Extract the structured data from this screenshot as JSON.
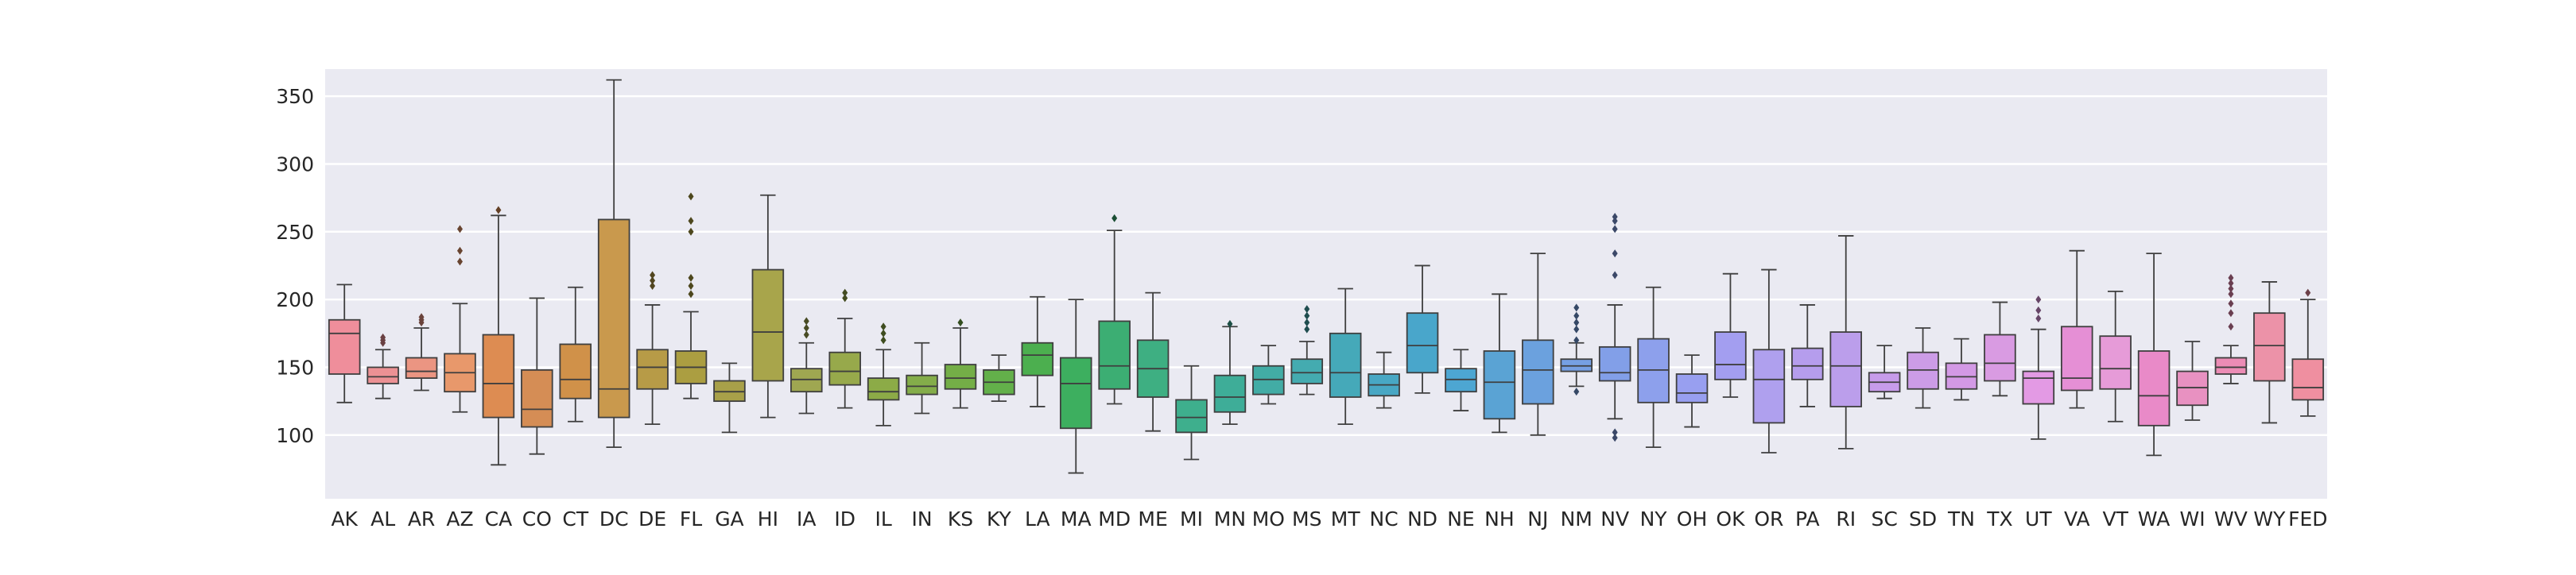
{
  "chart_data": {
    "type": "boxplot",
    "title": "",
    "xlabel": "",
    "ylabel": "",
    "ylim": [
      53,
      370
    ],
    "yticks": [
      100,
      150,
      200,
      250,
      300,
      350
    ],
    "grid": true,
    "legend": "none",
    "background_color": "#eaeaf2",
    "categories": [
      "AK",
      "AL",
      "AR",
      "AZ",
      "CA",
      "CO",
      "CT",
      "DC",
      "DE",
      "FL",
      "GA",
      "HI",
      "IA",
      "ID",
      "IL",
      "IN",
      "KS",
      "KY",
      "LA",
      "MA",
      "MD",
      "ME",
      "MI",
      "MN",
      "MO",
      "MS",
      "MT",
      "NC",
      "ND",
      "NE",
      "NH",
      "NJ",
      "NM",
      "NV",
      "NY",
      "OH",
      "OK",
      "OR",
      "PA",
      "RI",
      "SC",
      "SD",
      "TN",
      "TX",
      "UT",
      "VA",
      "VT",
      "WA",
      "WI",
      "WV",
      "WY",
      "FED"
    ],
    "colors": [
      "#ef8e9b",
      "#ec9194",
      "#eb9582",
      "#e8986b",
      "#dd8c52",
      "#d58d55",
      "#d09149",
      "#c9994d",
      "#b79b47",
      "#ab9e41",
      "#a8a049",
      "#a8a54b",
      "#9fa751",
      "#97a94b",
      "#8cab47",
      "#84ad4a",
      "#74ae47",
      "#63b04a",
      "#4caf4f",
      "#3daf5f",
      "#3cae73",
      "#3eaf82",
      "#3eaf8d",
      "#3ead98",
      "#42aca5",
      "#44abb0",
      "#45a9b9",
      "#48a7c4",
      "#49a6cb",
      "#4da6d2",
      "#5aa3d4",
      "#6ba1de",
      "#76a0e3",
      "#829fe8",
      "#8da0ec",
      "#989ff0",
      "#a39ef0",
      "#afa0ee",
      "#b59ded",
      "#bb9eeb",
      "#c79cea",
      "#cc9ce7",
      "#d399e5",
      "#d99be2",
      "#e39ae4",
      "#e58fd5",
      "#e69bd8",
      "#e98ac8",
      "#e891c1",
      "#ec8cb5",
      "#ec92a8",
      "#ef8fa0"
    ],
    "boxes": [
      {
        "q1": 145,
        "median": 175,
        "q3": 185,
        "whisker_low": 124,
        "whisker_high": 211,
        "outliers": []
      },
      {
        "q1": 138,
        "median": 143,
        "q3": 150,
        "whisker_low": 127,
        "whisker_high": 163,
        "outliers": [
          168,
          170,
          172
        ]
      },
      {
        "q1": 142,
        "median": 147,
        "q3": 157,
        "whisker_low": 133,
        "whisker_high": 179,
        "outliers": [
          183,
          185,
          187
        ]
      },
      {
        "q1": 132,
        "median": 146,
        "q3": 160,
        "whisker_low": 117,
        "whisker_high": 197,
        "outliers": [
          228,
          236,
          252
        ]
      },
      {
        "q1": 113,
        "median": 138,
        "q3": 174,
        "whisker_low": 78,
        "whisker_high": 262,
        "outliers": [
          266
        ]
      },
      {
        "q1": 106,
        "median": 119,
        "q3": 148,
        "whisker_low": 86,
        "whisker_high": 201,
        "outliers": []
      },
      {
        "q1": 127,
        "median": 141,
        "q3": 167,
        "whisker_low": 110,
        "whisker_high": 209,
        "outliers": []
      },
      {
        "q1": 113,
        "median": 134,
        "q3": 259,
        "whisker_low": 91,
        "whisker_high": 362,
        "outliers": []
      },
      {
        "q1": 134,
        "median": 150,
        "q3": 163,
        "whisker_low": 108,
        "whisker_high": 196,
        "outliers": [
          210,
          214,
          218
        ]
      },
      {
        "q1": 138,
        "median": 150,
        "q3": 162,
        "whisker_low": 127,
        "whisker_high": 191,
        "outliers": [
          204,
          210,
          216,
          250,
          258,
          276
        ]
      },
      {
        "q1": 125,
        "median": 132,
        "q3": 140,
        "whisker_low": 102,
        "whisker_high": 153,
        "outliers": []
      },
      {
        "q1": 140,
        "median": 176,
        "q3": 222,
        "whisker_low": 113,
        "whisker_high": 277,
        "outliers": []
      },
      {
        "q1": 132,
        "median": 141,
        "q3": 149,
        "whisker_low": 116,
        "whisker_high": 168,
        "outliers": [
          174,
          179,
          184
        ]
      },
      {
        "q1": 137,
        "median": 147,
        "q3": 161,
        "whisker_low": 120,
        "whisker_high": 186,
        "outliers": [
          201,
          205
        ]
      },
      {
        "q1": 126,
        "median": 132,
        "q3": 142,
        "whisker_low": 107,
        "whisker_high": 163,
        "outliers": [
          170,
          175,
          180
        ]
      },
      {
        "q1": 130,
        "median": 136,
        "q3": 144,
        "whisker_low": 116,
        "whisker_high": 168,
        "outliers": []
      },
      {
        "q1": 134,
        "median": 142,
        "q3": 152,
        "whisker_low": 120,
        "whisker_high": 179,
        "outliers": [
          183
        ]
      },
      {
        "q1": 130,
        "median": 139,
        "q3": 148,
        "whisker_low": 125,
        "whisker_high": 159,
        "outliers": []
      },
      {
        "q1": 144,
        "median": 159,
        "q3": 168,
        "whisker_low": 121,
        "whisker_high": 202,
        "outliers": []
      },
      {
        "q1": 105,
        "median": 138,
        "q3": 157,
        "whisker_low": 72,
        "whisker_high": 200,
        "outliers": []
      },
      {
        "q1": 134,
        "median": 151,
        "q3": 184,
        "whisker_low": 123,
        "whisker_high": 251,
        "outliers": [
          260
        ]
      },
      {
        "q1": 128,
        "median": 149,
        "q3": 170,
        "whisker_low": 103,
        "whisker_high": 205,
        "outliers": []
      },
      {
        "q1": 102,
        "median": 113,
        "q3": 126,
        "whisker_low": 82,
        "whisker_high": 151,
        "outliers": []
      },
      {
        "q1": 117,
        "median": 128,
        "q3": 144,
        "whisker_low": 108,
        "whisker_high": 180,
        "outliers": [
          182
        ]
      },
      {
        "q1": 130,
        "median": 141,
        "q3": 151,
        "whisker_low": 123,
        "whisker_high": 166,
        "outliers": []
      },
      {
        "q1": 138,
        "median": 146,
        "q3": 156,
        "whisker_low": 130,
        "whisker_high": 169,
        "outliers": [
          178,
          183,
          188,
          193
        ]
      },
      {
        "q1": 128,
        "median": 146,
        "q3": 175,
        "whisker_low": 108,
        "whisker_high": 208,
        "outliers": []
      },
      {
        "q1": 129,
        "median": 137,
        "q3": 145,
        "whisker_low": 120,
        "whisker_high": 161,
        "outliers": []
      },
      {
        "q1": 146,
        "median": 166,
        "q3": 190,
        "whisker_low": 131,
        "whisker_high": 225,
        "outliers": []
      },
      {
        "q1": 132,
        "median": 141,
        "q3": 149,
        "whisker_low": 118,
        "whisker_high": 163,
        "outliers": []
      },
      {
        "q1": 112,
        "median": 139,
        "q3": 162,
        "whisker_low": 102,
        "whisker_high": 204,
        "outliers": []
      },
      {
        "q1": 123,
        "median": 148,
        "q3": 170,
        "whisker_low": 100,
        "whisker_high": 234,
        "outliers": []
      },
      {
        "q1": 147,
        "median": 151,
        "q3": 156,
        "whisker_low": 136,
        "whisker_high": 168,
        "outliers": [
          132,
          170,
          178,
          183,
          188,
          194
        ]
      },
      {
        "q1": 140,
        "median": 146,
        "q3": 165,
        "whisker_low": 112,
        "whisker_high": 196,
        "outliers": [
          98,
          102,
          218,
          234,
          252,
          258,
          261
        ]
      },
      {
        "q1": 124,
        "median": 148,
        "q3": 171,
        "whisker_low": 91,
        "whisker_high": 209,
        "outliers": []
      },
      {
        "q1": 124,
        "median": 131,
        "q3": 145,
        "whisker_low": 106,
        "whisker_high": 159,
        "outliers": []
      },
      {
        "q1": 141,
        "median": 152,
        "q3": 176,
        "whisker_low": 128,
        "whisker_high": 219,
        "outliers": []
      },
      {
        "q1": 109,
        "median": 141,
        "q3": 163,
        "whisker_low": 87,
        "whisker_high": 222,
        "outliers": []
      },
      {
        "q1": 141,
        "median": 151,
        "q3": 164,
        "whisker_low": 121,
        "whisker_high": 196,
        "outliers": []
      },
      {
        "q1": 121,
        "median": 151,
        "q3": 176,
        "whisker_low": 90,
        "whisker_high": 247,
        "outliers": []
      },
      {
        "q1": 132,
        "median": 139,
        "q3": 146,
        "whisker_low": 127,
        "whisker_high": 166,
        "outliers": []
      },
      {
        "q1": 134,
        "median": 148,
        "q3": 161,
        "whisker_low": 120,
        "whisker_high": 179,
        "outliers": []
      },
      {
        "q1": 134,
        "median": 143,
        "q3": 153,
        "whisker_low": 126,
        "whisker_high": 171,
        "outliers": []
      },
      {
        "q1": 140,
        "median": 153,
        "q3": 174,
        "whisker_low": 129,
        "whisker_high": 198,
        "outliers": []
      },
      {
        "q1": 123,
        "median": 142,
        "q3": 147,
        "whisker_low": 97,
        "whisker_high": 178,
        "outliers": [
          186,
          192,
          200
        ]
      },
      {
        "q1": 133,
        "median": 142,
        "q3": 180,
        "whisker_low": 120,
        "whisker_high": 236,
        "outliers": []
      },
      {
        "q1": 134,
        "median": 149,
        "q3": 173,
        "whisker_low": 110,
        "whisker_high": 206,
        "outliers": []
      },
      {
        "q1": 107,
        "median": 129,
        "q3": 162,
        "whisker_low": 85,
        "whisker_high": 234,
        "outliers": []
      },
      {
        "q1": 122,
        "median": 135,
        "q3": 147,
        "whisker_low": 111,
        "whisker_high": 169,
        "outliers": []
      },
      {
        "q1": 145,
        "median": 150,
        "q3": 157,
        "whisker_low": 138,
        "whisker_high": 166,
        "outliers": [
          180,
          190,
          197,
          204,
          208,
          212,
          216
        ]
      },
      {
        "q1": 140,
        "median": 166,
        "q3": 190,
        "whisker_low": 109,
        "whisker_high": 213,
        "outliers": []
      },
      {
        "q1": 126,
        "median": 135,
        "q3": 156,
        "whisker_low": 114,
        "whisker_high": 200,
        "outliers": [
          205
        ]
      }
    ]
  }
}
